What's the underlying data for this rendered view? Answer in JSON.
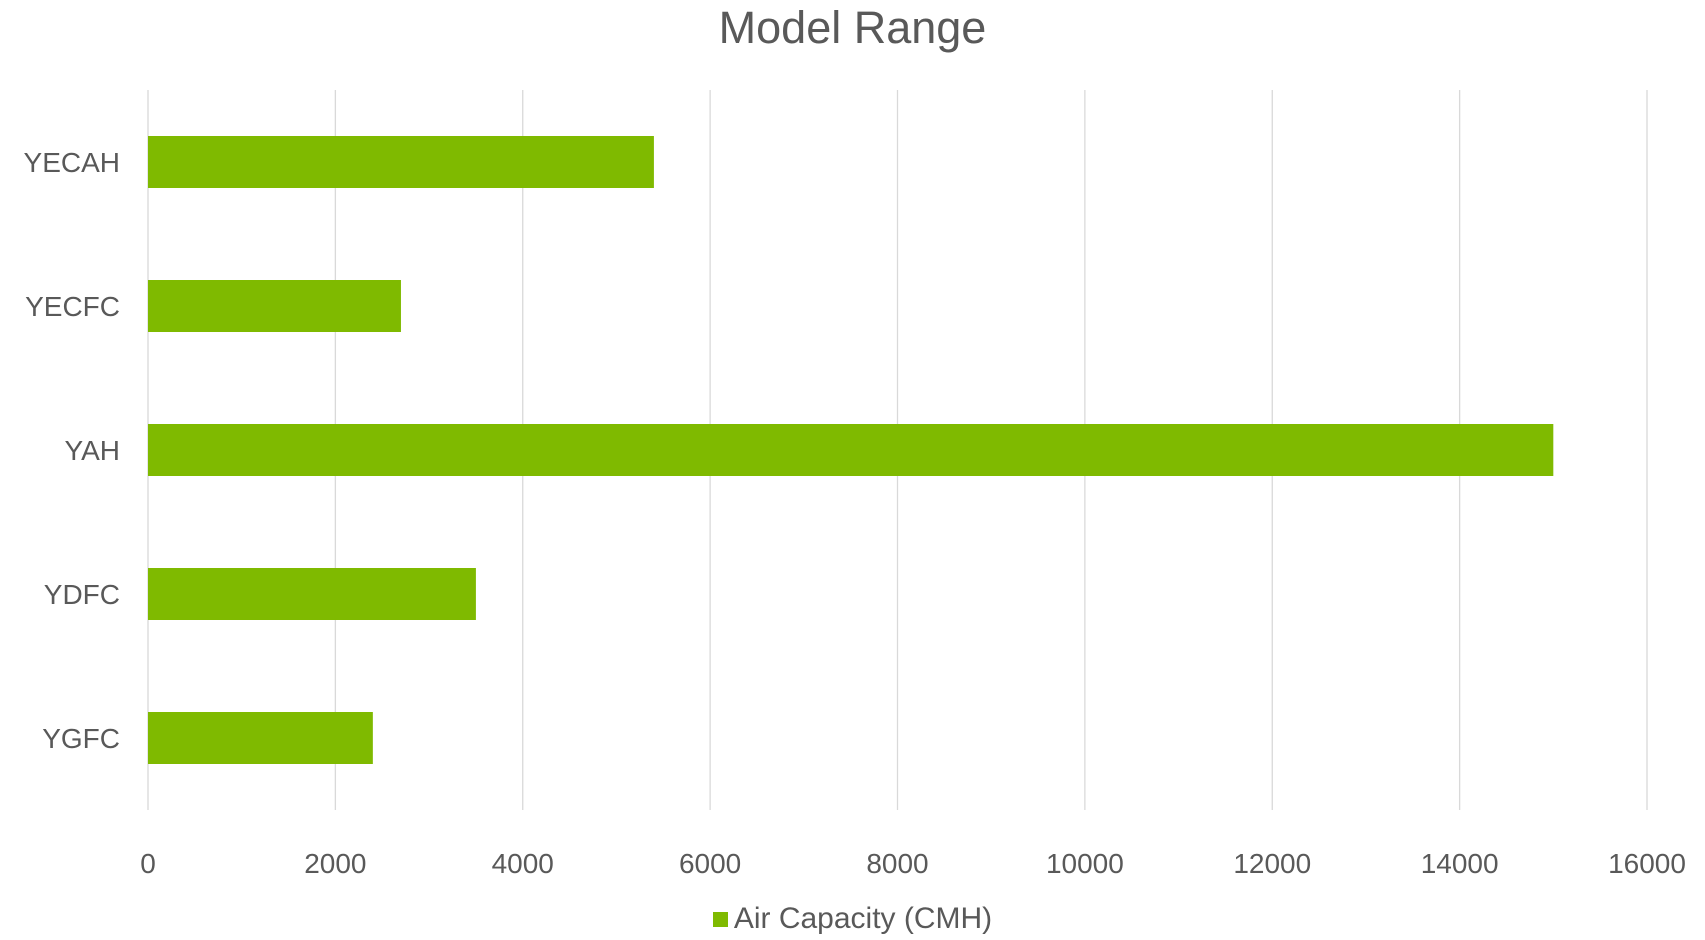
{
  "chart_data": {
    "type": "bar",
    "orientation": "horizontal",
    "title": "Model Range",
    "categories": [
      "YECAH",
      "YECFC",
      "YAH",
      "YDFC",
      "YGFC"
    ],
    "series": [
      {
        "name": "Air Capacity (CMH)",
        "values": [
          5400,
          2700,
          15000,
          3500,
          2400
        ],
        "color": "#7fba00"
      }
    ],
    "xlim": [
      0,
      16000
    ],
    "xticks": [
      "0",
      "2000",
      "4000",
      "6000",
      "8000",
      "10000",
      "12000",
      "14000",
      "16000"
    ],
    "grid": true,
    "legend_position": "bottom"
  }
}
